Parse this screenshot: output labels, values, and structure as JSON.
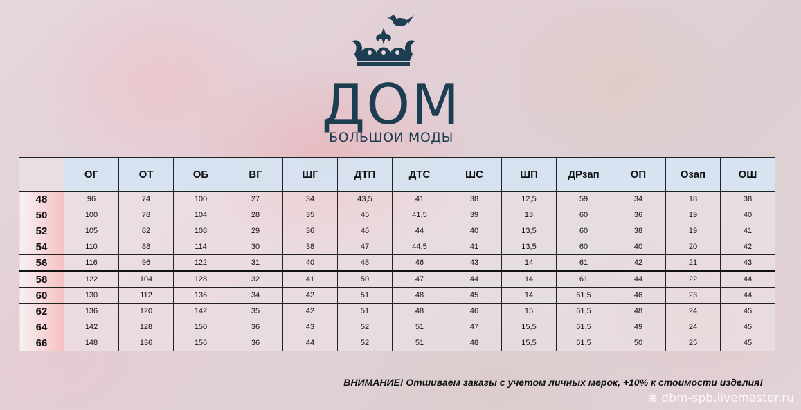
{
  "logo": {
    "title": "ДОМ",
    "subtitle": "БОЛЬШОИ МОДЫ",
    "icon": "crown-bird-icon"
  },
  "table": {
    "headers": [
      "ОГ",
      "ОТ",
      "ОБ",
      "ВГ",
      "ШГ",
      "ДТП",
      "ДТС",
      "ШС",
      "ШП",
      "ДРзап",
      "ОП",
      "Озап",
      "ОШ"
    ],
    "rows": [
      {
        "size": "48",
        "values": [
          "96",
          "74",
          "100",
          "27",
          "34",
          "43,5",
          "41",
          "38",
          "12,5",
          "59",
          "34",
          "18",
          "38"
        ]
      },
      {
        "size": "50",
        "values": [
          "100",
          "78",
          "104",
          "28",
          "35",
          "45",
          "41,5",
          "39",
          "13",
          "60",
          "36",
          "19",
          "40"
        ]
      },
      {
        "size": "52",
        "values": [
          "105",
          "82",
          "108",
          "29",
          "36",
          "46",
          "44",
          "40",
          "13,5",
          "60",
          "38",
          "19",
          "41"
        ]
      },
      {
        "size": "54",
        "values": [
          "110",
          "88",
          "114",
          "30",
          "38",
          "47",
          "44,5",
          "41",
          "13,5",
          "60",
          "40",
          "20",
          "42"
        ]
      },
      {
        "size": "56",
        "values": [
          "116",
          "96",
          "122",
          "31",
          "40",
          "48",
          "46",
          "43",
          "14",
          "61",
          "42",
          "21",
          "43"
        ]
      },
      {
        "size": "58",
        "values": [
          "122",
          "104",
          "128",
          "32",
          "41",
          "50",
          "47",
          "44",
          "14",
          "61",
          "44",
          "22",
          "44"
        ]
      },
      {
        "size": "60",
        "values": [
          "130",
          "112",
          "136",
          "34",
          "42",
          "51",
          "48",
          "45",
          "14",
          "61,5",
          "46",
          "23",
          "44"
        ]
      },
      {
        "size": "62",
        "values": [
          "136",
          "120",
          "142",
          "35",
          "42",
          "51",
          "48",
          "46",
          "15",
          "61,5",
          "48",
          "24",
          "45"
        ]
      },
      {
        "size": "64",
        "values": [
          "142",
          "128",
          "150",
          "36",
          "43",
          "52",
          "51",
          "47",
          "15,5",
          "61,5",
          "49",
          "24",
          "45"
        ]
      },
      {
        "size": "66",
        "values": [
          "148",
          "136",
          "156",
          "36",
          "44",
          "52",
          "51",
          "48",
          "15,5",
          "61,5",
          "50",
          "25",
          "45"
        ]
      }
    ]
  },
  "notice": "ВНИМАНИЕ! Отшиваем заказы с учетом личных мерок, +10% к стоимости изделия!",
  "watermark": {
    "icon": "snowflake-icon",
    "text": "dbm-spb.livemaster.ru"
  },
  "colors": {
    "logo": "#1d3d50",
    "header_bg": "#d6e4f2",
    "size_col_accent": "#fabebe"
  }
}
